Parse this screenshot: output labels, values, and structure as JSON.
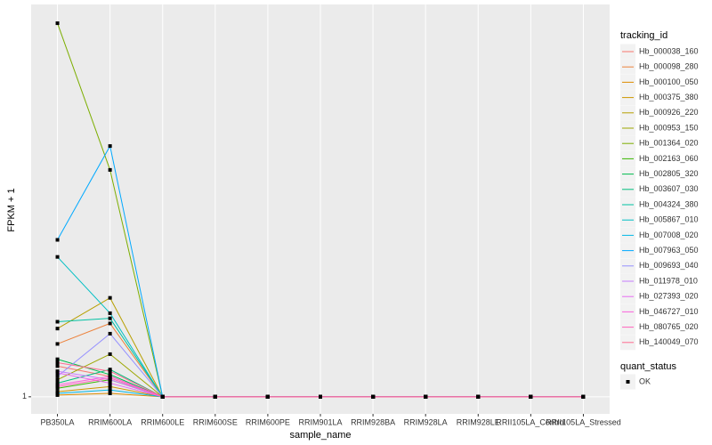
{
  "chart_data": {
    "type": "line",
    "x_label": "sample_name",
    "y_label": "FPKM + 1",
    "categories": [
      "PB350LA",
      "RRIM600LA",
      "RRIM600LE",
      "RRIM600SE",
      "RRIM600PE",
      "RRIM901LA",
      "RRIM928BA",
      "RRIM928LA",
      "RRIM928LE",
      "RRII105LA_Control",
      "RRII105LA_Stressed"
    ],
    "ylim": [
      0,
      24
    ],
    "yticks": [
      1
    ],
    "grid": true,
    "legend_title": "tracking_id",
    "legend_position": "right",
    "point_legend": {
      "title": "quant_status",
      "labels": [
        "OK"
      ],
      "color": "#000000"
    },
    "series": [
      {
        "name": "Hb_000038_160",
        "color": "#F8766D",
        "values": [
          2.8,
          2.2,
          1,
          1,
          1,
          1,
          1,
          1,
          1,
          1,
          1
        ]
      },
      {
        "name": "Hb_000098_280",
        "color": "#EC823C",
        "values": [
          4.1,
          5.3,
          1,
          1,
          1,
          1,
          1,
          1,
          1,
          1,
          1
        ]
      },
      {
        "name": "Hb_000100_050",
        "color": "#DE8C00",
        "values": [
          1.1,
          1.2,
          1,
          1,
          1,
          1,
          1,
          1,
          1,
          1,
          1
        ]
      },
      {
        "name": "Hb_000375_380",
        "color": "#CD9600",
        "values": [
          1.3,
          1.6,
          1,
          1,
          1,
          1,
          1,
          1,
          1,
          1,
          1
        ]
      },
      {
        "name": "Hb_000926_220",
        "color": "#B79F00",
        "values": [
          5.0,
          6.8,
          1,
          1,
          1,
          1,
          1,
          1,
          1,
          1,
          1
        ]
      },
      {
        "name": "Hb_000953_150",
        "color": "#9CA700",
        "values": [
          2.0,
          3.5,
          1,
          1,
          1,
          1,
          1,
          1,
          1,
          1,
          1
        ]
      },
      {
        "name": "Hb_001364_020",
        "color": "#7CAE00",
        "values": [
          22.9,
          14.3,
          1,
          1,
          1,
          1,
          1,
          1,
          1,
          1,
          1
        ]
      },
      {
        "name": "Hb_002163_060",
        "color": "#39B600",
        "values": [
          1.5,
          2.0,
          1,
          1,
          1,
          1,
          1,
          1,
          1,
          1,
          1
        ]
      },
      {
        "name": "Hb_002805_320",
        "color": "#00BB4E",
        "values": [
          3.2,
          2.3,
          1,
          1,
          1,
          1,
          1,
          1,
          1,
          1,
          1
        ]
      },
      {
        "name": "Hb_003607_030",
        "color": "#00BF7D",
        "values": [
          1.8,
          2.6,
          1,
          1,
          1,
          1,
          1,
          1,
          1,
          1,
          1
        ]
      },
      {
        "name": "Hb_004324_380",
        "color": "#00C1A3",
        "values": [
          5.4,
          5.6,
          1,
          1,
          1,
          1,
          1,
          1,
          1,
          1,
          1
        ]
      },
      {
        "name": "Hb_005867_010",
        "color": "#00BFC4",
        "values": [
          9.2,
          5.9,
          1,
          1,
          1,
          1,
          1,
          1,
          1,
          1,
          1
        ]
      },
      {
        "name": "Hb_007008_020",
        "color": "#00B8E7",
        "values": [
          1.2,
          1.4,
          1,
          1,
          1,
          1,
          1,
          1,
          1,
          1,
          1
        ]
      },
      {
        "name": "Hb_007963_050",
        "color": "#00A9FF",
        "values": [
          10.2,
          15.7,
          1,
          1,
          1,
          1,
          1,
          1,
          1,
          1,
          1
        ]
      },
      {
        "name": "Hb_009693_040",
        "color": "#9590FF",
        "values": [
          2.2,
          4.7,
          1,
          1,
          1,
          1,
          1,
          1,
          1,
          1,
          1
        ]
      },
      {
        "name": "Hb_011978_010",
        "color": "#C77CFF",
        "values": [
          2.5,
          2.0,
          1,
          1,
          1,
          1,
          1,
          1,
          1,
          1,
          1
        ]
      },
      {
        "name": "Hb_027393_020",
        "color": "#E76BF3",
        "values": [
          2.4,
          1.8,
          1,
          1,
          1,
          1,
          1,
          1,
          1,
          1,
          1
        ]
      },
      {
        "name": "Hb_046727_010",
        "color": "#FA62DB",
        "values": [
          1.7,
          2.2,
          1,
          1,
          1,
          1,
          1,
          1,
          1,
          1,
          1
        ]
      },
      {
        "name": "Hb_080765_020",
        "color": "#FF62BC",
        "values": [
          1.6,
          2.1,
          1,
          1,
          1,
          1,
          1,
          1,
          1,
          1,
          1
        ]
      },
      {
        "name": "Hb_140049_070",
        "color": "#FF6C91",
        "values": [
          3.0,
          2.5,
          1,
          1,
          1,
          1,
          1,
          1,
          1,
          1,
          1
        ]
      }
    ]
  }
}
